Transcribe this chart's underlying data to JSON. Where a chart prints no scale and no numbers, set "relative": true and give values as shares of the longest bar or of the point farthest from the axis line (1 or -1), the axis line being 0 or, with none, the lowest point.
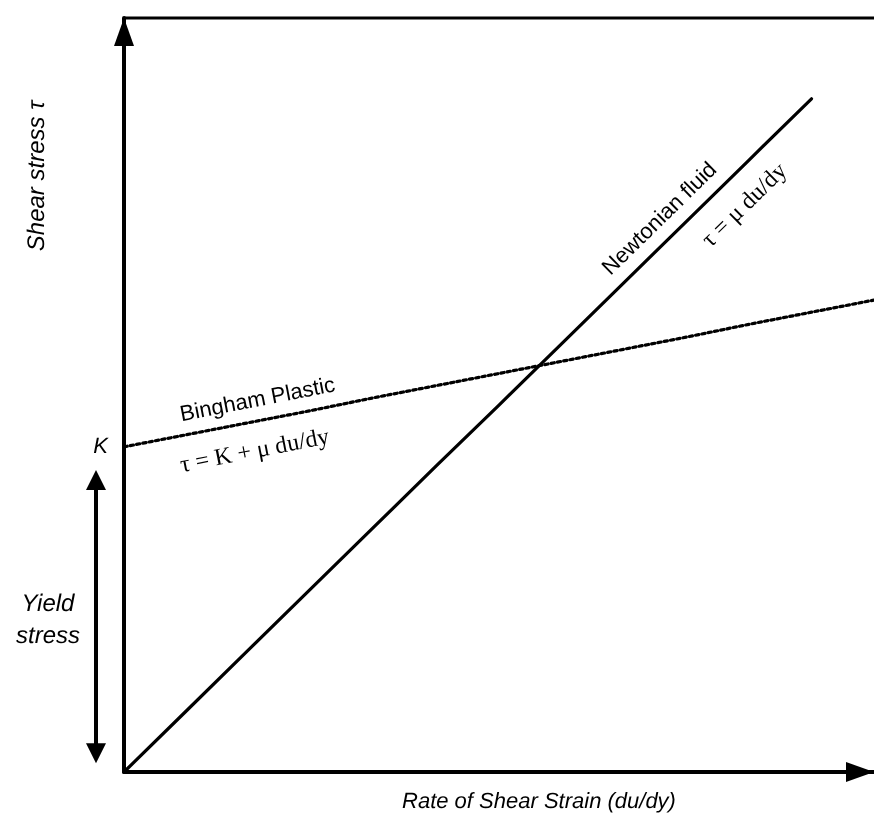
{
  "chart_data": {
    "type": "line",
    "relative": true,
    "xlabel": "Rate of Shear Strain (du/dy)",
    "ylabel": "Shear stress τ",
    "categories": [
      null,
      null,
      null,
      null,
      null,
      null,
      null,
      null,
      null,
      null,
      null,
      null,
      null
    ],
    "series": [
      {
        "name": "Newtonian fluid",
        "color": "#000000",
        "line_style": "solid",
        "values": [
          0,
          0.091,
          0.182,
          0.273,
          0.364,
          0.455,
          0.545,
          0.636,
          0.727,
          0.818,
          0.909,
          1.0,
          null
        ]
      },
      {
        "name": "Bingham Plastic",
        "color": "#000000",
        "line_style": "dotted",
        "values": [
          0.483,
          0.501,
          0.519,
          0.537,
          0.556,
          0.574,
          0.592,
          0.61,
          0.628,
          0.646,
          0.665,
          0.683,
          0.701
        ]
      }
    ],
    "annotations": [
      "K",
      "Yield stress",
      "τ = μ du/dy",
      "τ = K + μ du/dy"
    ],
    "marker": "none",
    "legend": false
  }
}
